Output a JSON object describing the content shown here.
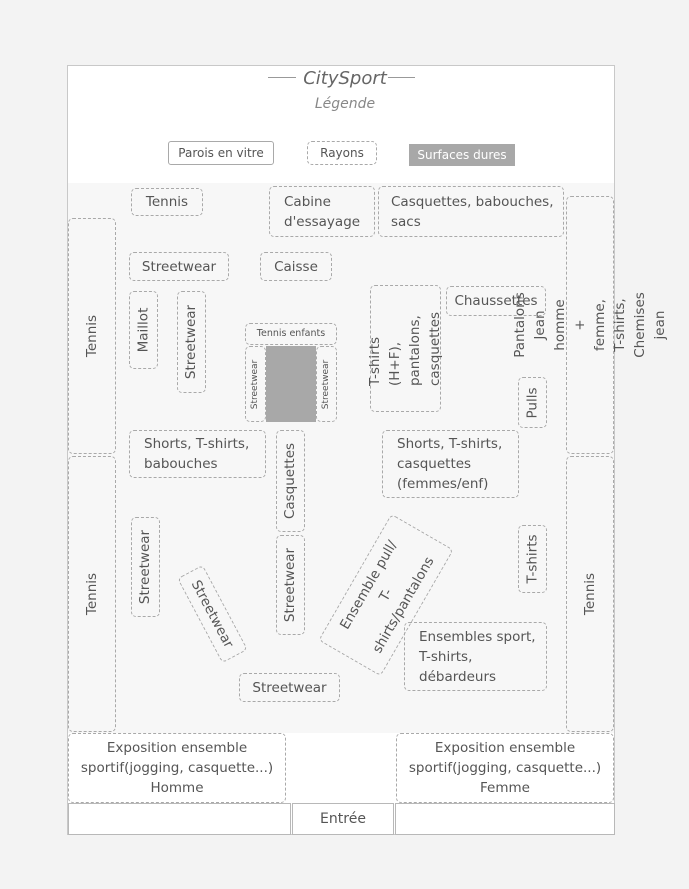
{
  "title": "CitySport",
  "subtitle": "Légende",
  "legend": {
    "glass": "Parois en vitre",
    "shelves": "Rayons",
    "hard": "Surfaces dures"
  },
  "zones": {
    "tennis_top": "Tennis",
    "cabine": "Cabine d'essayage",
    "casquettes_babouches": "Casquettes, babouches, sacs",
    "pantalons_jean": "Pantalons Jean homme + femme, T-shirts, Chemises jean",
    "tennis_left_upper": "Tennis",
    "streetwear_1": "Streetwear",
    "caisse": "Caisse",
    "tshirts_hf": "T-shirts (H+F), pantalons, casquettes",
    "chaussettes": "Chaussettes",
    "maillot": "Maillot",
    "streetwear_2": "Streetwear",
    "tennis_enfants": "Tennis enfants",
    "streetwear_small_left": "Streetwear",
    "streetwear_small_right": "Streetwear",
    "pulls": "Pulls",
    "shorts_babouches": "Shorts, T-shirts, babouches",
    "casquettes": "Casquettes",
    "shorts_femmes": "Shorts, T-shirts, casquettes (femmes/enf)",
    "tennis_left_lower": "Tennis",
    "streetwear_3": "Streetwear",
    "streetwear_tilt": "Streetwear",
    "streetwear_4": "Streetwear",
    "ensemble_pull": "Ensemble pull/ T-shirts/pantalons",
    "tshirts_right": "T-shirts",
    "tennis_right": "Tennis",
    "ensembles_sport": "Ensembles sport, T-shirts, débardeurs",
    "streetwear_5": "Streetwear",
    "expo_homme": "Exposition ensemble sportif(jogging, casquette...) Homme",
    "expo_femme": "Exposition ensemble sportif(jogging, casquette...) Femme",
    "entree": "Entrée"
  },
  "colors": {
    "hard_surface": "#a8a8a8",
    "border": "#a9a9a9",
    "text": "#555555"
  }
}
